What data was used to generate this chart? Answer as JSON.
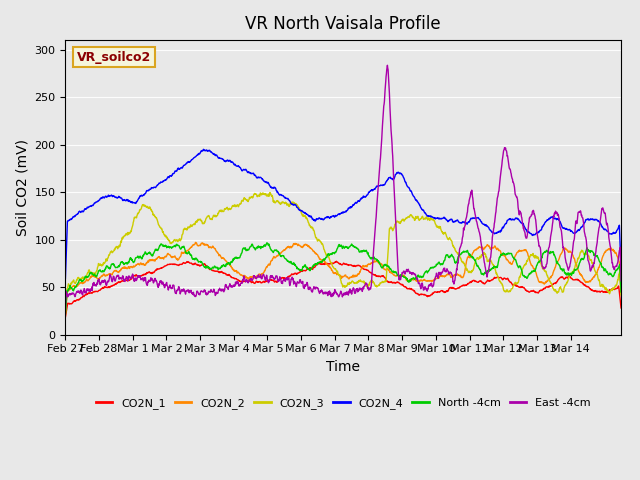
{
  "title": "VR North Vaisala Profile",
  "ylabel": "Soil CO2 (mV)",
  "xlabel": "Time",
  "annotation": "VR_soilco2",
  "ylim": [
    0,
    310
  ],
  "xlim_days": 16.5,
  "background_color": "#e8e8e8",
  "plot_bg_color": "#e8e8e8",
  "series_colors": {
    "CO2N_1": "#ff0000",
    "CO2N_2": "#ff8800",
    "CO2N_3": "#cccc00",
    "CO2N_4": "#0000ff",
    "North -4cm": "#00cc00",
    "East -4cm": "#aa00aa"
  },
  "yticks": [
    0,
    50,
    100,
    150,
    200,
    250,
    300
  ],
  "xtick_labels": [
    "Feb 27",
    "Feb 28",
    "Mar 1",
    "Mar 2",
    "Mar 3",
    "Mar 4",
    "Mar 5",
    "Mar 6",
    "Mar 7",
    "Mar 8",
    "Mar 9",
    "Mar 10",
    "Mar 11",
    "Mar 12",
    "Mar 13",
    "Mar 14"
  ],
  "n_points": 1680
}
